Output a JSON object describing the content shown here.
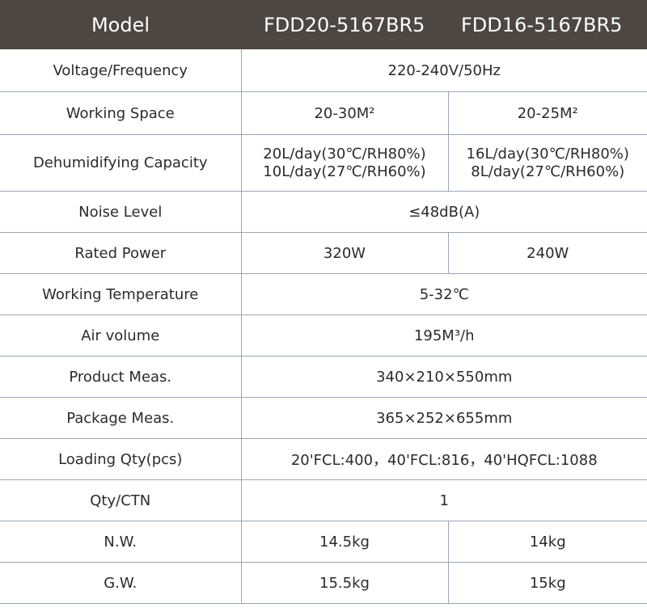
{
  "header": {
    "label": "Model",
    "model_a": "FDD20-5167BR5",
    "model_b": "FDD16-5167BR5"
  },
  "rows": {
    "voltage": {
      "label": "Voltage/Frequency",
      "value": "220-240V/50Hz"
    },
    "space": {
      "label": "Working Space",
      "a": "20-30M²",
      "b": "20-25M²"
    },
    "capacity": {
      "label": "Dehumidifying Capacity",
      "a1": "20L/day(30℃/RH80%)",
      "a2": "10L/day(27℃/RH60%)",
      "b1": "16L/day(30℃/RH80%)",
      "b2": "8L/day(27℃/RH60%)"
    },
    "noise": {
      "label": "Noise Level",
      "value": "≤48dB(A)"
    },
    "power": {
      "label": "Rated Power",
      "a": "320W",
      "b": "240W"
    },
    "temp": {
      "label": "Working Temperature",
      "value": "5-32℃"
    },
    "air": {
      "label": "Air volume",
      "value": "195M³/h"
    },
    "product": {
      "label": "Product Meas.",
      "value": "340×210×550mm"
    },
    "package": {
      "label": "Package Meas.",
      "value": "365×252×655mm"
    },
    "loading": {
      "label": "Loading Qty(pcs)",
      "value": "20'FCL:400，40'FCL:816，40'HQFCL:1088"
    },
    "qty": {
      "label": "Qty/CTN",
      "value": "1"
    },
    "nw": {
      "label": "N.W.",
      "a": "14.5kg",
      "b": "14kg"
    },
    "gw": {
      "label": "G.W.",
      "a": "15.5kg",
      "b": "15kg"
    }
  }
}
